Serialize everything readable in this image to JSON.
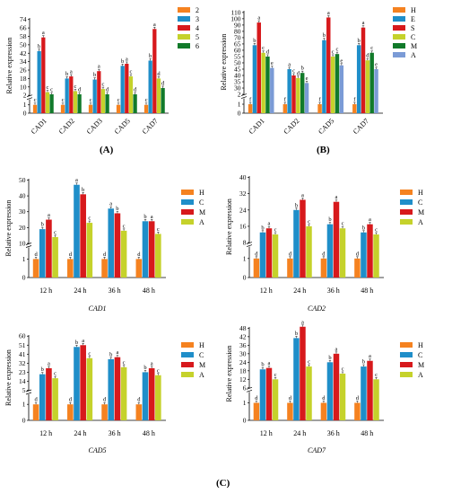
{
  "panel_labels": [
    "(A)",
    "(B)",
    "(C)"
  ],
  "colors": {
    "2": "#f58220",
    "3": "#1f8ec9",
    "4": "#d7191c",
    "5": "#c5d22b",
    "6": "#117a2a",
    "H": "#f58220",
    "E": "#1f8ec9",
    "S": "#d7191c",
    "C": "#c5d22b",
    "M": "#117a2a",
    "A": "#7b9bd6",
    "C_time": "#1f8ec9",
    "M_time": "#d7191c",
    "A_time": "#c5d22b"
  },
  "chart_data": [
    {
      "id": "A",
      "type": "bar",
      "ylabel": "Relative expression",
      "categories": [
        "CAD1",
        "CAD2",
        "CAD3",
        "CAD5",
        "CAD7"
      ],
      "italic_categories": false,
      "legend_position": "right",
      "legend": [
        "2",
        "3",
        "4",
        "5",
        "6"
      ],
      "y_axis": {
        "break_below": 1.6,
        "break_above": 2,
        "lower_ticks": [
          "0",
          "1"
        ],
        "upper_ticks": [
          "2",
          "10",
          "18",
          "26",
          "34",
          "42",
          "50",
          "58",
          "66",
          "74"
        ],
        "lower_range": [
          0,
          1.6
        ],
        "upper_range": [
          2,
          74
        ]
      },
      "series": [
        {
          "name": "2",
          "color_key": "2",
          "values": [
            1,
            1,
            1,
            1,
            1
          ],
          "letters": [
            "c",
            "c",
            "c",
            "c",
            "c"
          ]
        },
        {
          "name": "3",
          "color_key": "3",
          "values": [
            44,
            18,
            17,
            30,
            35
          ],
          "letters": [
            "b",
            "b",
            "b",
            "b",
            "b"
          ]
        },
        {
          "name": "4",
          "color_key": "4",
          "values": [
            57,
            20,
            25,
            32,
            65
          ],
          "letters": [
            "a",
            "a",
            "a",
            "a",
            "a"
          ]
        },
        {
          "name": "5",
          "color_key": "5",
          "values": [
            5,
            6,
            8,
            20,
            18
          ],
          "letters": [
            "c",
            "c",
            "c",
            "c",
            "d"
          ]
        },
        {
          "name": "6",
          "color_key": "6",
          "values": [
            3,
            3,
            3,
            3,
            9
          ],
          "letters": [
            "c",
            "d",
            "d",
            "d",
            "d"
          ]
        }
      ]
    },
    {
      "id": "B",
      "type": "bar",
      "ylabel": "Relative expression",
      "categories": [
        "CAD1",
        "CAD2",
        "CAD5",
        "CAD7"
      ],
      "italic_categories": false,
      "legend_position": "right",
      "legend": [
        "H",
        "E",
        "S",
        "C",
        "M",
        "A"
      ],
      "y_axis": {
        "break_below": 1.6,
        "break_above": 2,
        "lower_ticks": [
          "0",
          "1"
        ],
        "upper_ticks": [
          "2",
          "30",
          "35",
          "40",
          "45",
          "50",
          "55",
          "60",
          "65",
          "70",
          "80",
          "90",
          "100",
          "110"
        ],
        "lower_range": [
          0,
          1.6
        ],
        "upper_range": [
          2,
          110
        ]
      },
      "series": [
        {
          "name": "H",
          "color_key": "H",
          "values": [
            1,
            1,
            1,
            1
          ],
          "letters": [
            "f",
            "f",
            "f",
            "f"
          ]
        },
        {
          "name": "E",
          "color_key": "E",
          "values": [
            64,
            45,
            68,
            64
          ],
          "letters": [
            "b",
            "a",
            "b",
            "b"
          ]
        },
        {
          "name": "S",
          "color_key": "S",
          "values": [
            94,
            40,
            102,
            86
          ],
          "letters": [
            "a",
            "c",
            "a",
            "a"
          ]
        },
        {
          "name": "C",
          "color_key": "C",
          "values": [
            58,
            38,
            55,
            52
          ],
          "letters": [
            "c",
            "d",
            "c",
            "d"
          ]
        },
        {
          "name": "M",
          "color_key": "M",
          "values": [
            55,
            42,
            57,
            58
          ],
          "letters": [
            "d",
            "b",
            "c",
            "c"
          ]
        },
        {
          "name": "A",
          "color_key": "A",
          "values": [
            46,
            34,
            48,
            45
          ],
          "letters": [
            "e",
            "e",
            "e",
            "e"
          ]
        }
      ]
    },
    {
      "id": "C1",
      "type": "bar",
      "ylabel": "Relative expression",
      "xlabel": "CAD1",
      "categories": [
        "12 h",
        "24 h",
        "36 h",
        "48 h"
      ],
      "legend_position": "right",
      "legend": [
        "H",
        "C",
        "M",
        "A"
      ],
      "y_axis": {
        "break_below": 1.6,
        "break_above": 10,
        "lower_ticks": [
          "0",
          "1"
        ],
        "upper_ticks": [
          "10",
          "20",
          "30",
          "40",
          "50"
        ],
        "lower_range": [
          0,
          1.6
        ],
        "upper_range": [
          10,
          50
        ]
      },
      "series": [
        {
          "name": "H",
          "color_key": "H",
          "values": [
            1,
            1,
            1,
            1
          ],
          "letters": [
            "d",
            "d",
            "d",
            "d"
          ]
        },
        {
          "name": "C",
          "color_key": "C_time",
          "values": [
            19,
            47,
            32,
            24
          ],
          "letters": [
            "b",
            "a",
            "a",
            "b"
          ]
        },
        {
          "name": "M",
          "color_key": "M_time",
          "values": [
            25,
            41,
            29,
            24
          ],
          "letters": [
            "a",
            "b",
            "b",
            "a"
          ]
        },
        {
          "name": "A",
          "color_key": "A_time",
          "values": [
            14,
            23,
            18,
            16
          ],
          "letters": [
            "c",
            "c",
            "c",
            "c"
          ]
        }
      ]
    },
    {
      "id": "C2",
      "type": "bar",
      "ylabel": "Relative expression",
      "xlabel": "CAD2",
      "categories": [
        "12 h",
        "24 h",
        "36 h",
        "48 h"
      ],
      "legend_position": "right",
      "legend": [
        "H",
        "C",
        "M",
        "A"
      ],
      "y_axis": {
        "break_below": 1.6,
        "break_above": 8,
        "lower_ticks": [
          "0",
          "1"
        ],
        "upper_ticks": [
          "8",
          "16",
          "24",
          "32",
          "40"
        ],
        "lower_range": [
          0,
          1.6
        ],
        "upper_range": [
          8,
          40
        ]
      },
      "series": [
        {
          "name": "H",
          "color_key": "H",
          "values": [
            1,
            1,
            1,
            1
          ],
          "letters": [
            "d",
            "d",
            "d",
            "d"
          ]
        },
        {
          "name": "C",
          "color_key": "C_time",
          "values": [
            13,
            24,
            17,
            13
          ],
          "letters": [
            "b",
            "b",
            "b",
            "b"
          ]
        },
        {
          "name": "M",
          "color_key": "M_time",
          "values": [
            15,
            29,
            28,
            17
          ],
          "letters": [
            "a",
            "a",
            "a",
            "a"
          ]
        },
        {
          "name": "A",
          "color_key": "A_time",
          "values": [
            12,
            16,
            15,
            12
          ],
          "letters": [
            "c",
            "c",
            "c",
            "c"
          ]
        }
      ]
    },
    {
      "id": "C5",
      "type": "bar",
      "ylabel": "Relative expression",
      "xlabel": "CAD5",
      "categories": [
        "12 h",
        "24 h",
        "36 h",
        "48 h"
      ],
      "legend_position": "right",
      "legend": [
        "H",
        "C",
        "M",
        "A"
      ],
      "y_axis": {
        "break_below": 1.6,
        "break_above": 5,
        "lower_ticks": [
          "0",
          "1"
        ],
        "upper_ticks": [
          "5",
          "14",
          "23",
          "32",
          "41",
          "51",
          "60"
        ],
        "lower_range": [
          0,
          1.6
        ],
        "upper_range": [
          5,
          60
        ]
      },
      "series": [
        {
          "name": "H",
          "color_key": "H",
          "values": [
            1,
            1,
            1,
            1
          ],
          "letters": [
            "d",
            "d",
            "d",
            "d"
          ]
        },
        {
          "name": "C",
          "color_key": "C_time",
          "values": [
            21,
            49,
            36,
            23
          ],
          "letters": [
            "b",
            "b",
            "b",
            "b"
          ]
        },
        {
          "name": "M",
          "color_key": "M_time",
          "values": [
            27,
            51,
            38,
            27
          ],
          "letters": [
            "a",
            "a",
            "a",
            "a"
          ]
        },
        {
          "name": "A",
          "color_key": "A_time",
          "values": [
            17,
            37,
            28,
            20
          ],
          "letters": [
            "c",
            "c",
            "c",
            "c"
          ]
        }
      ]
    },
    {
      "id": "C7",
      "type": "bar",
      "ylabel": "Relative expression",
      "xlabel": "CAD7",
      "categories": [
        "12 h",
        "24 h",
        "36 h",
        "48 h"
      ],
      "legend_position": "right",
      "legend": [
        "H",
        "C",
        "M",
        "A"
      ],
      "y_axis": {
        "break_below": 1.6,
        "break_above": 6,
        "lower_ticks": [
          "0",
          "1"
        ],
        "upper_ticks": [
          "6",
          "12",
          "18",
          "24",
          "30",
          "36",
          "42",
          "48"
        ],
        "lower_range": [
          0,
          1.6
        ],
        "upper_range": [
          6,
          50
        ]
      },
      "series": [
        {
          "name": "H",
          "color_key": "H",
          "values": [
            1,
            1,
            1,
            1
          ],
          "letters": [
            "d",
            "d",
            "d",
            "d"
          ]
        },
        {
          "name": "C",
          "color_key": "C_time",
          "values": [
            19,
            41,
            24,
            21
          ],
          "letters": [
            "b",
            "b",
            "b",
            "b"
          ]
        },
        {
          "name": "M",
          "color_key": "M_time",
          "values": [
            20,
            49,
            30,
            25
          ],
          "letters": [
            "a",
            "a",
            "a",
            "a"
          ]
        },
        {
          "name": "A",
          "color_key": "A_time",
          "values": [
            12,
            21,
            16,
            12
          ],
          "letters": [
            "c",
            "c",
            "c",
            "c"
          ]
        }
      ]
    }
  ]
}
